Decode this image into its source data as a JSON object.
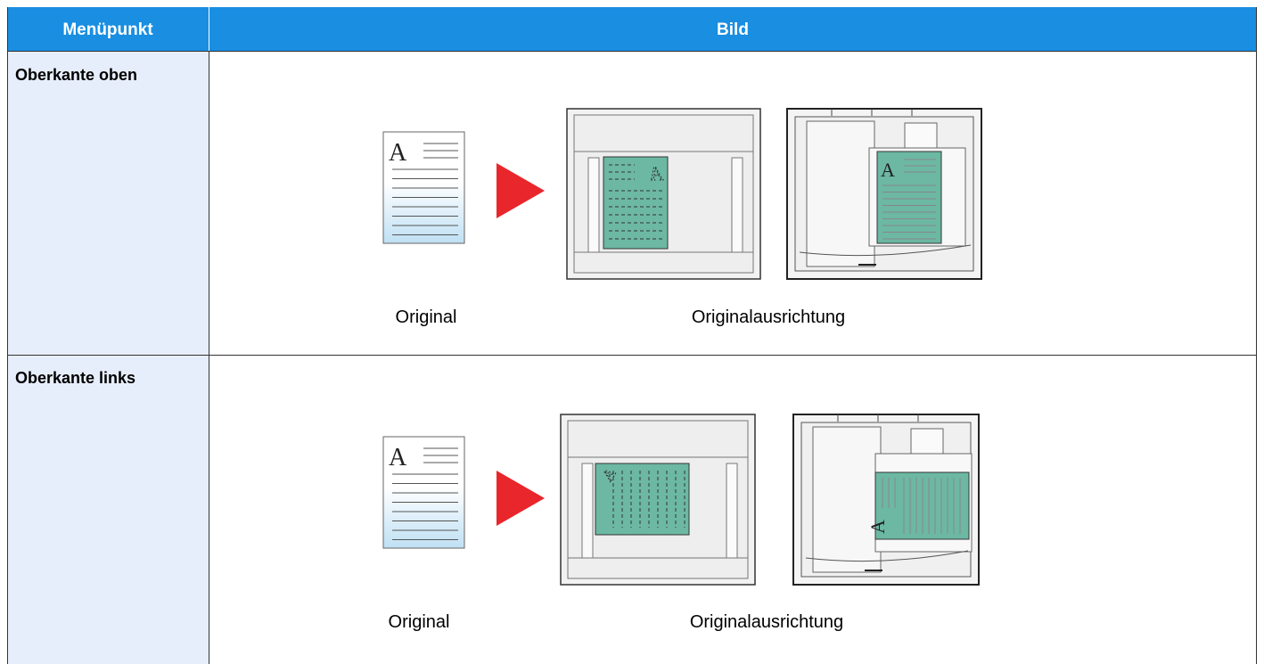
{
  "table": {
    "columns": [
      "Menüpunkt",
      "Bild"
    ],
    "rows": [
      {
        "label": "Oberkante oben",
        "letter": "A",
        "captions": [
          "Original",
          "Originalausrichtung"
        ]
      },
      {
        "label": "Oberkante links",
        "letter": "A",
        "captions": [
          "Original",
          "Originalausrichtung"
        ]
      }
    ]
  }
}
